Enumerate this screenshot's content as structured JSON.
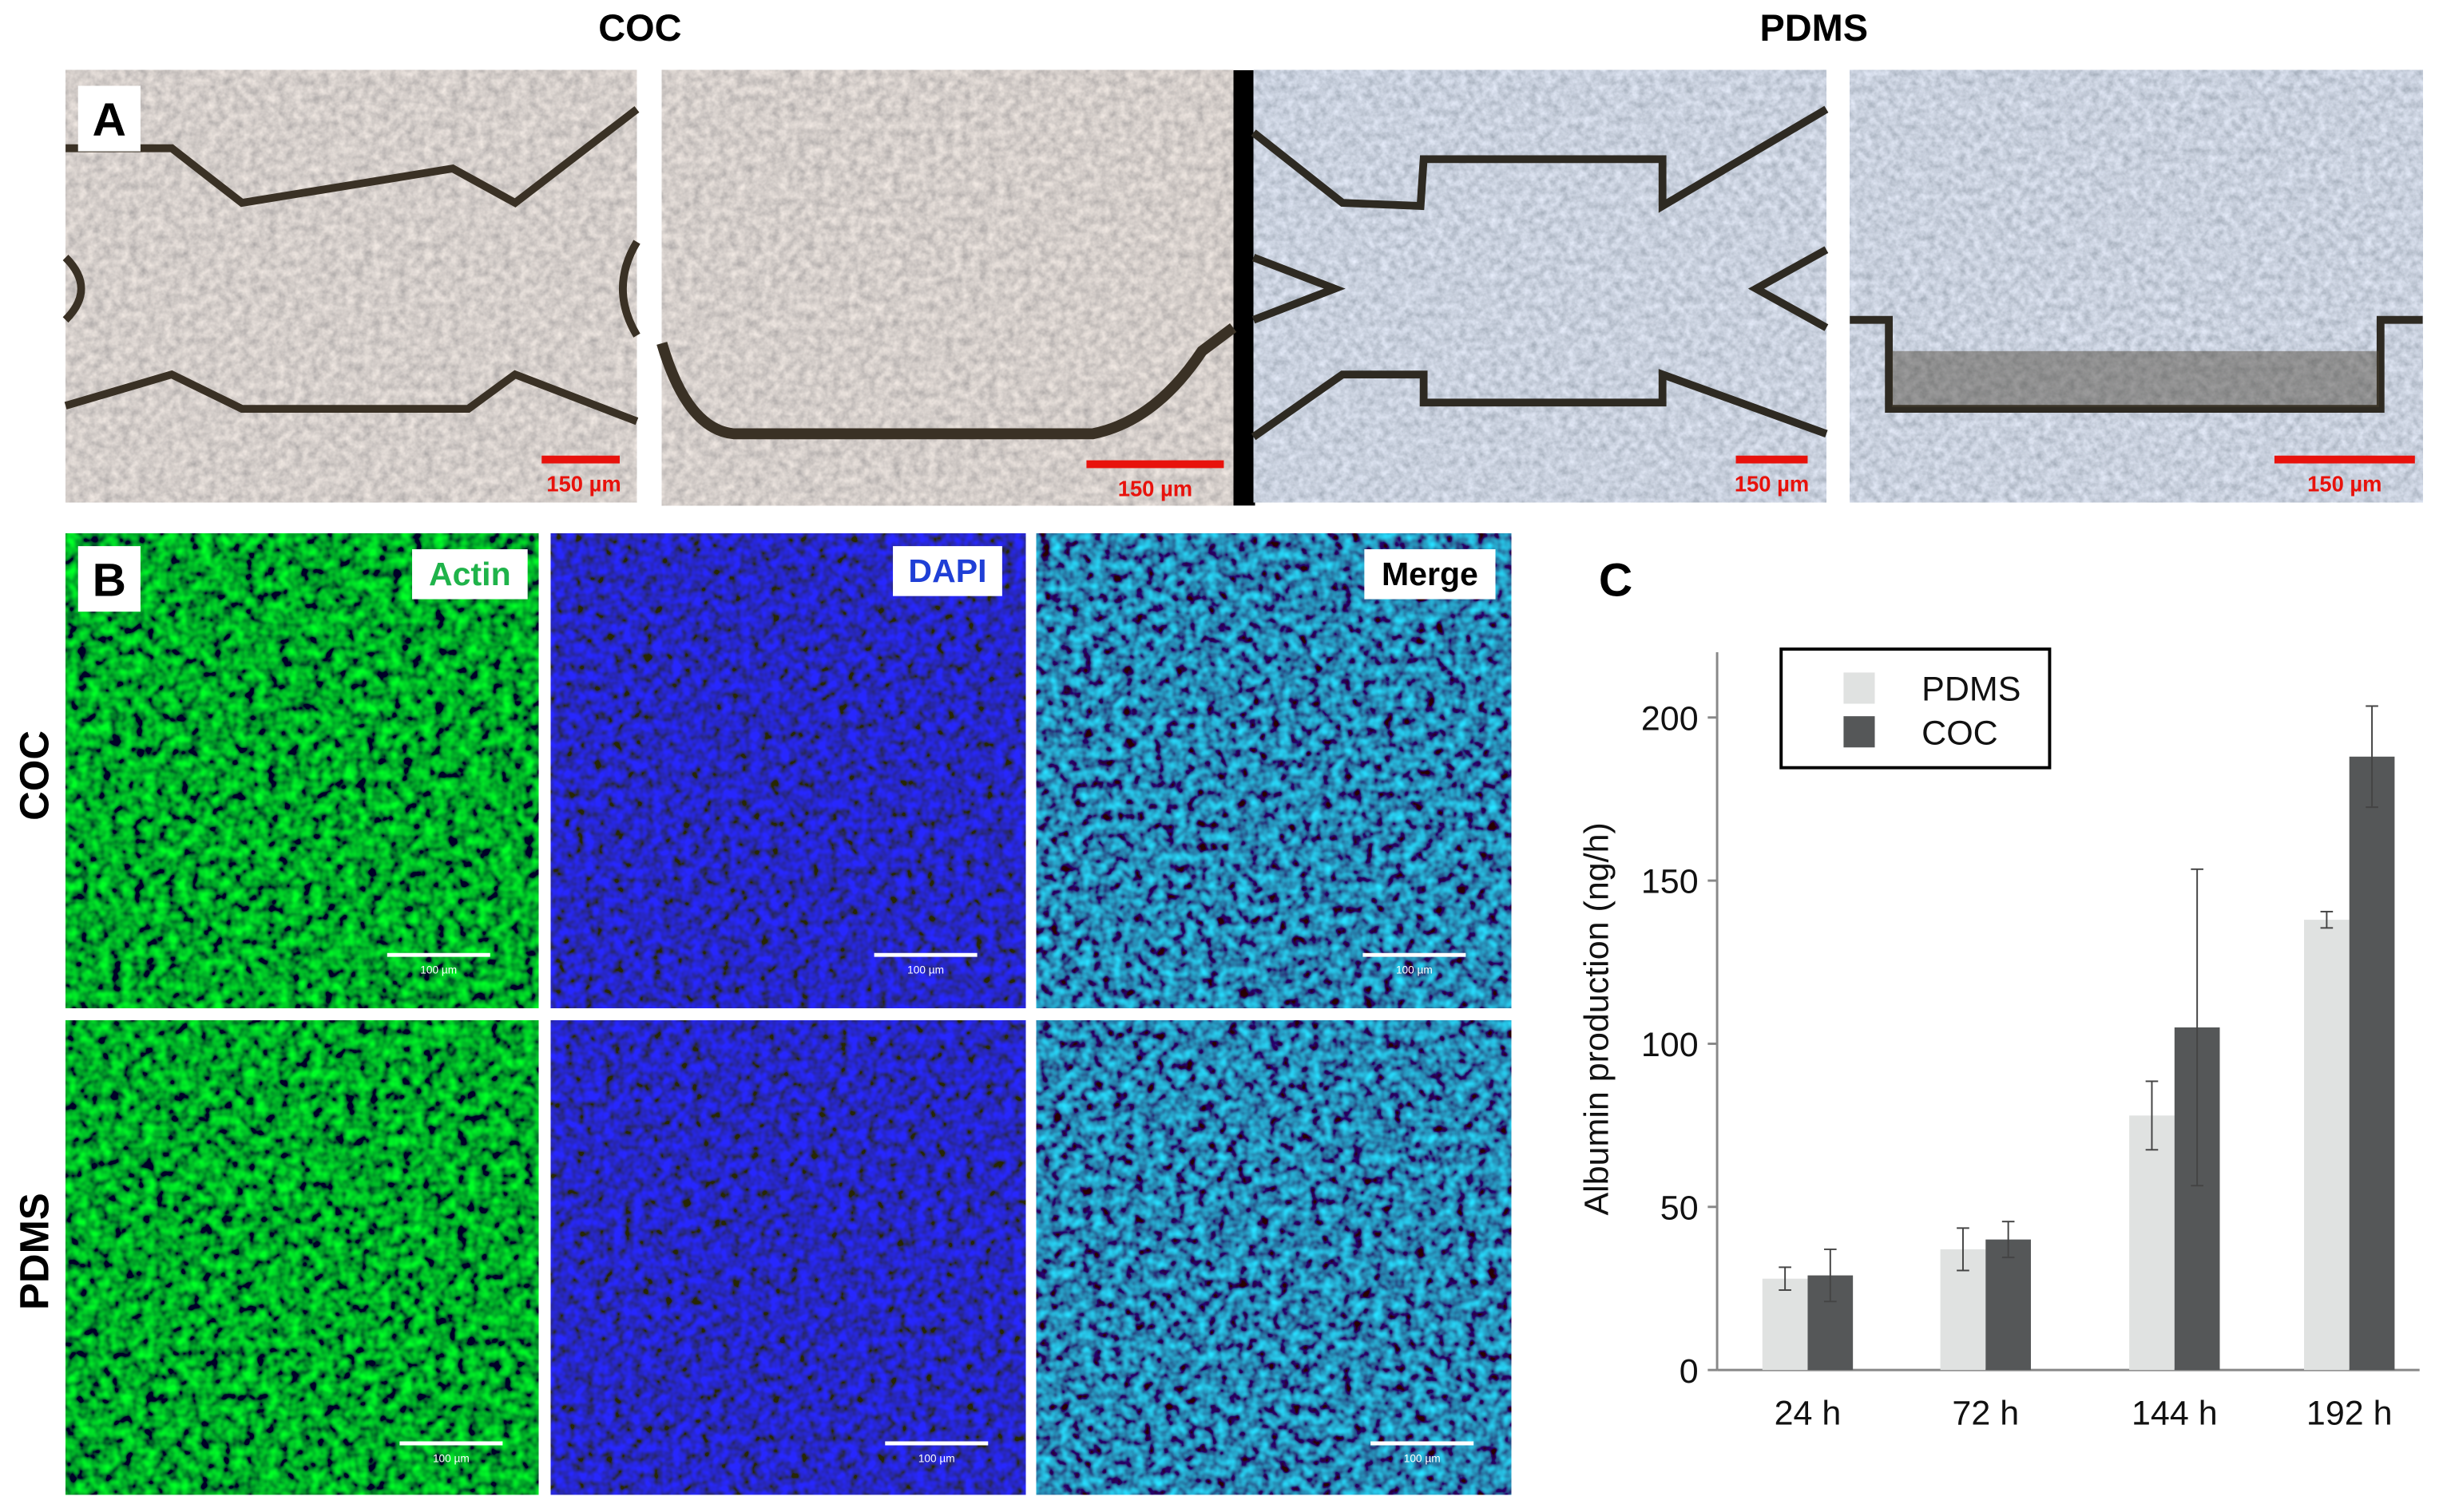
{
  "panel_a": {
    "label": "A",
    "headers": [
      "COC",
      "PDMS"
    ],
    "scale_bars": [
      "150 µm",
      "150 µm",
      "150 µm",
      "150 µm"
    ]
  },
  "panel_b": {
    "label": "B",
    "channels": [
      "Actin",
      "DAPI",
      "Merge"
    ],
    "rows": [
      "COC",
      "PDMS"
    ],
    "scale_bars": [
      "100 µm",
      "100 µm",
      "100 µm",
      "100 µm",
      "100 µm",
      "100 µm"
    ]
  },
  "chart_data": {
    "type": "bar",
    "panel_label": "C",
    "y_label": "Albumin production (ng/h)",
    "categories": [
      "24 h",
      "72 h",
      "144 h",
      "192 h"
    ],
    "series": [
      {
        "name": "PDMS",
        "color": "#e0e2e1",
        "values": [
          28,
          37,
          78,
          138
        ],
        "errors": [
          3.5,
          6.5,
          10.5,
          2.5
        ]
      },
      {
        "name": "COC",
        "color": "#555758",
        "values": [
          29,
          40,
          105,
          188
        ],
        "errors": [
          8,
          5.5,
          48.5,
          15.5
        ]
      }
    ],
    "ylim": [
      0,
      220
    ],
    "yticks": [
      0,
      50,
      100,
      150,
      200
    ],
    "legend": "upper left"
  }
}
